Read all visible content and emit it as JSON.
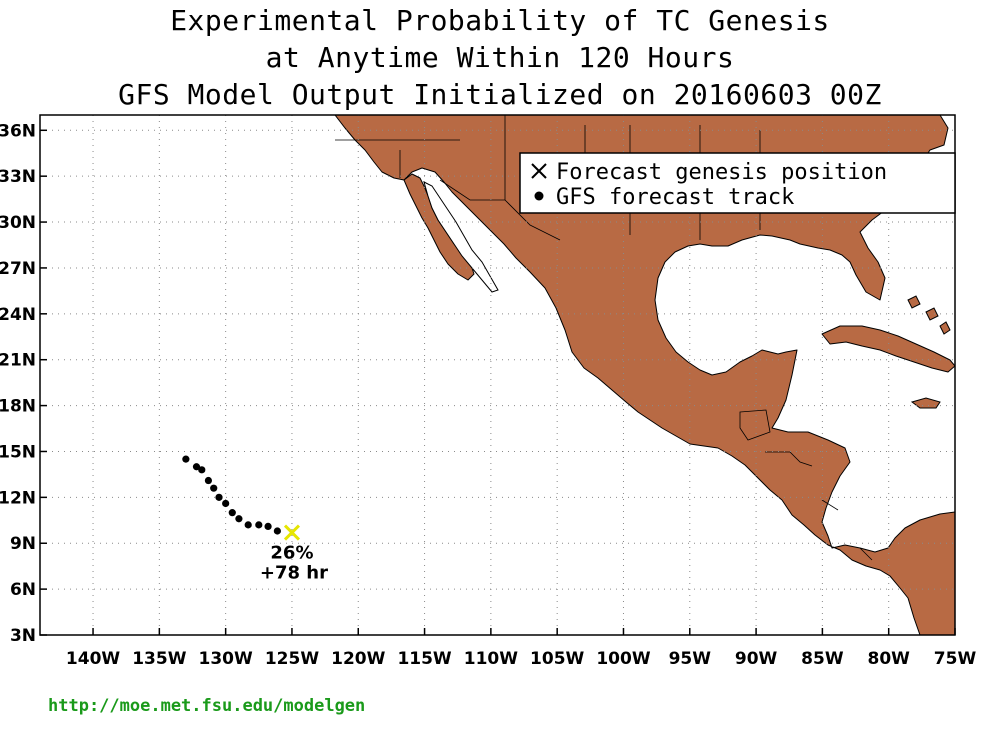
{
  "title": {
    "line1": "Experimental Probability of TC Genesis",
    "line2": "at Anytime Within 120 Hours",
    "line3": "GFS Model Output Initialized on 20160603 00Z"
  },
  "map": {
    "lon_range": [
      -144,
      -75
    ],
    "lat_range": [
      3,
      37
    ],
    "land_color": "#b86a44",
    "ocean_color": "#ffffff",
    "grid": "dotted",
    "lat_ticks": [
      {
        "value": 36,
        "label": "36N"
      },
      {
        "value": 33,
        "label": "33N"
      },
      {
        "value": 30,
        "label": "30N"
      },
      {
        "value": 27,
        "label": "27N"
      },
      {
        "value": 24,
        "label": "24N"
      },
      {
        "value": 21,
        "label": "21N"
      },
      {
        "value": 18,
        "label": "18N"
      },
      {
        "value": 15,
        "label": "15N"
      },
      {
        "value": 12,
        "label": "12N"
      },
      {
        "value": 9,
        "label": "9N"
      },
      {
        "value": 6,
        "label": "6N"
      },
      {
        "value": 3,
        "label": "3N"
      }
    ],
    "lon_ticks": [
      {
        "value": -140,
        "label": "140W"
      },
      {
        "value": -135,
        "label": "135W"
      },
      {
        "value": -130,
        "label": "130W"
      },
      {
        "value": -125,
        "label": "125W"
      },
      {
        "value": -120,
        "label": "120W"
      },
      {
        "value": -115,
        "label": "115W"
      },
      {
        "value": -110,
        "label": "110W"
      },
      {
        "value": -105,
        "label": "105W"
      },
      {
        "value": -100,
        "label": "100W"
      },
      {
        "value": -95,
        "label": "95W"
      },
      {
        "value": -90,
        "label": "90W"
      },
      {
        "value": -85,
        "label": "85W"
      },
      {
        "value": -80,
        "label": "80W"
      },
      {
        "value": -75,
        "label": "75W"
      }
    ],
    "legend": {
      "placement": "top-right",
      "genesis_label": "Forecast genesis position",
      "track_label": "GFS forecast track"
    },
    "track": [
      {
        "lon": -133.0,
        "lat": 14.5
      },
      {
        "lon": -132.2,
        "lat": 14.0
      },
      {
        "lon": -131.8,
        "lat": 13.8
      },
      {
        "lon": -131.3,
        "lat": 13.1
      },
      {
        "lon": -130.9,
        "lat": 12.6
      },
      {
        "lon": -130.5,
        "lat": 12.0
      },
      {
        "lon": -130.0,
        "lat": 11.6
      },
      {
        "lon": -129.5,
        "lat": 11.0
      },
      {
        "lon": -129.0,
        "lat": 10.6
      },
      {
        "lon": -128.3,
        "lat": 10.2
      },
      {
        "lon": -127.5,
        "lat": 10.2
      },
      {
        "lon": -126.8,
        "lat": 10.1
      },
      {
        "lon": -126.1,
        "lat": 9.8
      }
    ],
    "genesis": {
      "lon": -125.0,
      "lat": 9.7,
      "color": "#e6e600",
      "probability": "26%",
      "lead_time": "+78 hr"
    }
  },
  "footer": {
    "url": "http://moe.met.fsu.edu/modelgen",
    "color": "#1a9a1a"
  }
}
